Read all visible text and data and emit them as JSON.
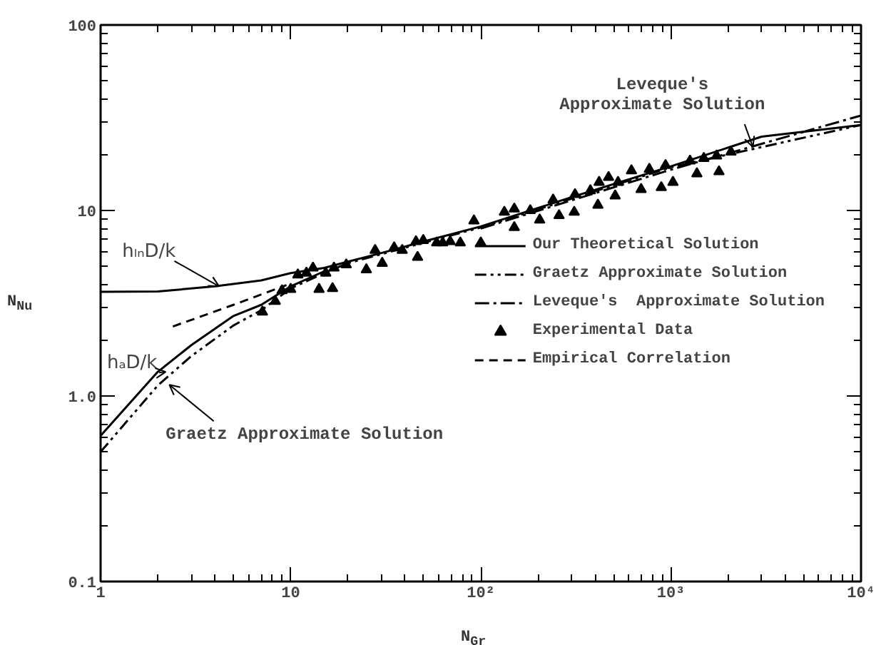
{
  "chart_data": {
    "type": "line",
    "xlabel": "N$_{Gr}$",
    "ylabel": "N$_{Nu}$",
    "log": "xy",
    "xlim": [
      1,
      10000
    ],
    "ylim": [
      0.1,
      100
    ],
    "xticks": [
      1,
      10,
      {
        "value": 100,
        "label": "10²"
      },
      {
        "value": 1000,
        "label": "10³"
      },
      {
        "value": 10000,
        "label": "10⁴"
      }
    ],
    "yticks": [
      0.1,
      {
        "value": 1,
        "label": "1.0"
      },
      10,
      100
    ],
    "grid": false,
    "legend": "right",
    "series": [
      {
        "name": "Our Theoretical Solution",
        "color": "#000000",
        "line_style": "solid",
        "x": [
          1,
          2,
          4,
          7,
          10,
          15,
          20,
          30,
          50,
          100,
          300,
          1000,
          3000,
          10000
        ],
        "values": [
          3.64,
          3.66,
          3.9,
          4.2,
          4.6,
          4.9,
          5.3,
          5.9,
          6.8,
          8.2,
          11.8,
          17.3,
          25.0,
          28.9
        ]
      },
      {
        "color": "#000000",
        "line_style": "solid",
        "x": [
          1,
          2,
          3,
          5,
          7,
          10,
          15
        ],
        "values": [
          0.61,
          1.35,
          1.88,
          2.7,
          3.1,
          3.9,
          4.7
        ]
      },
      {
        "name": "Graetz Approximate Solution",
        "color": "#000000",
        "line_style": "dashdotdot",
        "x": [
          1,
          2,
          3,
          5,
          7,
          10,
          15,
          20,
          50,
          100,
          1000,
          10000
        ],
        "values": [
          0.5,
          1.14,
          1.64,
          2.4,
          2.9,
          3.8,
          4.6,
          5.2,
          6.7,
          8.1,
          17.1,
          28.9
        ]
      },
      {
        "name": "Leveque's  Approximate Solution",
        "color": "#000000",
        "line_style": "dashdot",
        "x": [
          100,
          1000,
          10000
        ],
        "values": [
          8.0,
          16.6,
          32.5
        ]
      },
      {
        "name": "Experimental Data",
        "type": "scatter",
        "marker": "triangle",
        "color": "#000000",
        "x": [
          7.1,
          8.3,
          9.0,
          10,
          10.9,
          12.1,
          13.1,
          14.1,
          16.6,
          15.3,
          16.9,
          19.6,
          25,
          27.8,
          30.3,
          35,
          38.6,
          46.5,
          45.6,
          49.8,
          58.6,
          69,
          63,
          78,
          92,
          100,
          133,
          150,
          150,
          182,
          204,
          240,
          258,
          310,
          313,
          377,
          413,
          419,
          470,
          509,
          527,
          620,
          697,
          770,
          890,
          937,
          1025,
          1260,
          1370,
          1490,
          1740,
          1790,
          2070
        ],
        "values": [
          2.84,
          3.24,
          3.7,
          3.76,
          4.5,
          4.6,
          4.9,
          3.76,
          3.8,
          4.6,
          4.9,
          5.1,
          4.8,
          6.1,
          5.2,
          6.3,
          6.1,
          5.6,
          6.8,
          6.9,
          6.7,
          6.8,
          6.7,
          6.7,
          8.8,
          6.7,
          9.8,
          10.2,
          8.1,
          10,
          8.9,
          11.4,
          9.4,
          9.8,
          12.2,
          12.8,
          10.7,
          14.2,
          15.1,
          12,
          14.2,
          16.4,
          13,
          16.7,
          13.3,
          17.5,
          14.2,
          18.5,
          15.8,
          19.1,
          19.7,
          16.2,
          20.7
        ]
      },
      {
        "name": "Empirical Correlation",
        "color": "#000000",
        "line_style": "dashed",
        "x": [
          2.4,
          5,
          9.5
        ],
        "values": [
          2.37,
          3.1,
          3.96
        ]
      }
    ],
    "annotations": [
      {
        "text": "hₗₙD/k",
        "x": 4.2,
        "y": 3.9
      },
      {
        "text": "hₐD/k",
        "x": 2.2,
        "y": 1.35
      },
      {
        "text": "Graetz Approximate Solution",
        "x": 2.3,
        "y": 1.15
      },
      {
        "text": "Leveque's\nApproximate Solution",
        "x": 2700,
        "y": 22
      }
    ]
  }
}
